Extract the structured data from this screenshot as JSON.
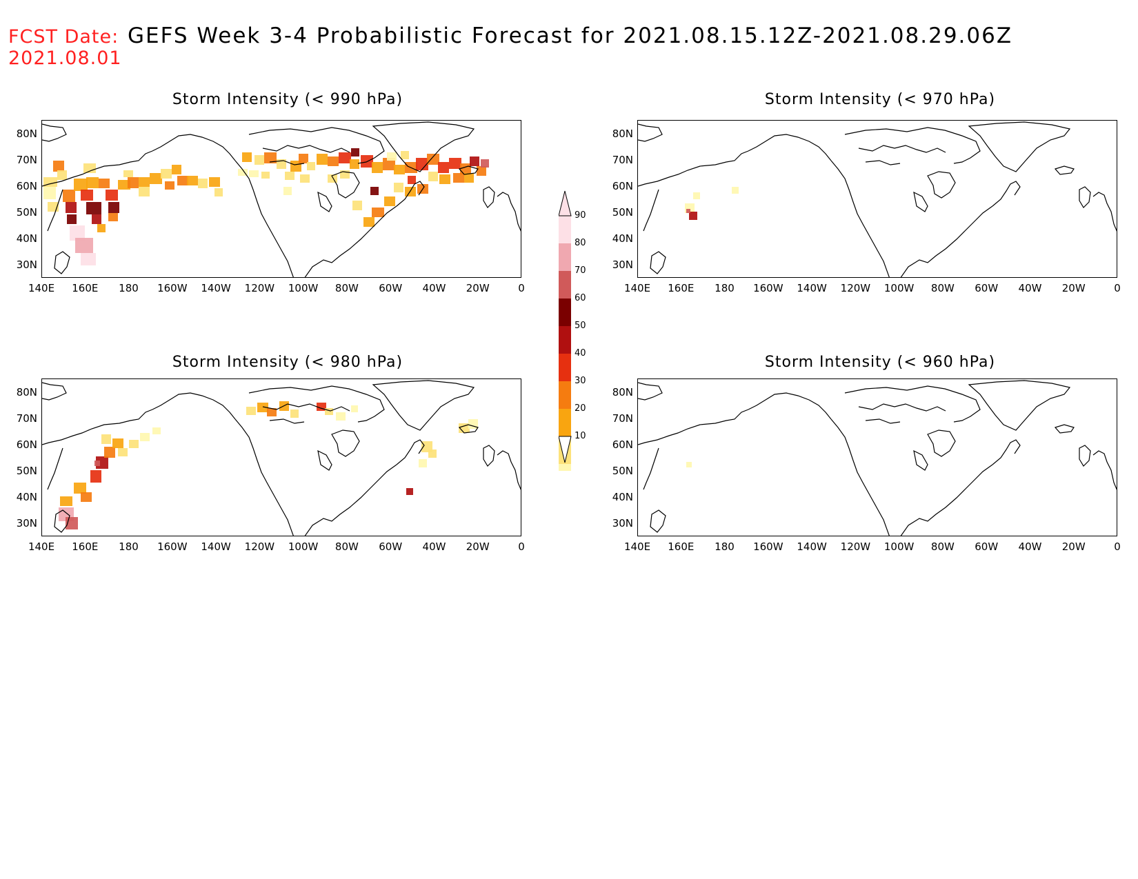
{
  "header": {
    "fcst_label_line1": "FCST Date:",
    "fcst_label_line2": "2021.08.01",
    "title": "GEFS Week 3-4 Probabilistic Forecast for 2021.08.15.12Z-2021.08.29.06Z",
    "fcst_color": "#ff2020"
  },
  "axes": {
    "lat_ticks": [
      "80N",
      "70N",
      "60N",
      "50N",
      "40N",
      "30N"
    ],
    "lon_ticks": [
      "140E",
      "160E",
      "180",
      "160W",
      "140W",
      "120W",
      "100W",
      "80W",
      "60W",
      "40W",
      "20W",
      "0"
    ]
  },
  "panels": [
    {
      "title": "Storm Intensity (< 990 hPa)",
      "coverage": "high"
    },
    {
      "title": "Storm Intensity (< 970 hPa)",
      "coverage": "low"
    },
    {
      "title": "Storm Intensity (< 980 hPa)",
      "coverage": "medium"
    },
    {
      "title": "Storm Intensity (< 960 hPa)",
      "coverage": "minimal"
    }
  ],
  "colorbar": {
    "levels": [
      "10",
      "20",
      "30",
      "40",
      "50",
      "60",
      "70",
      "80",
      "90"
    ],
    "colors": [
      "#fff7b0",
      "#fde27a",
      "#f9a510",
      "#f57c10",
      "#e63010",
      "#b01010",
      "#7a0000",
      "#d05a5a",
      "#f0a8b0",
      "#fde0e6"
    ]
  }
}
